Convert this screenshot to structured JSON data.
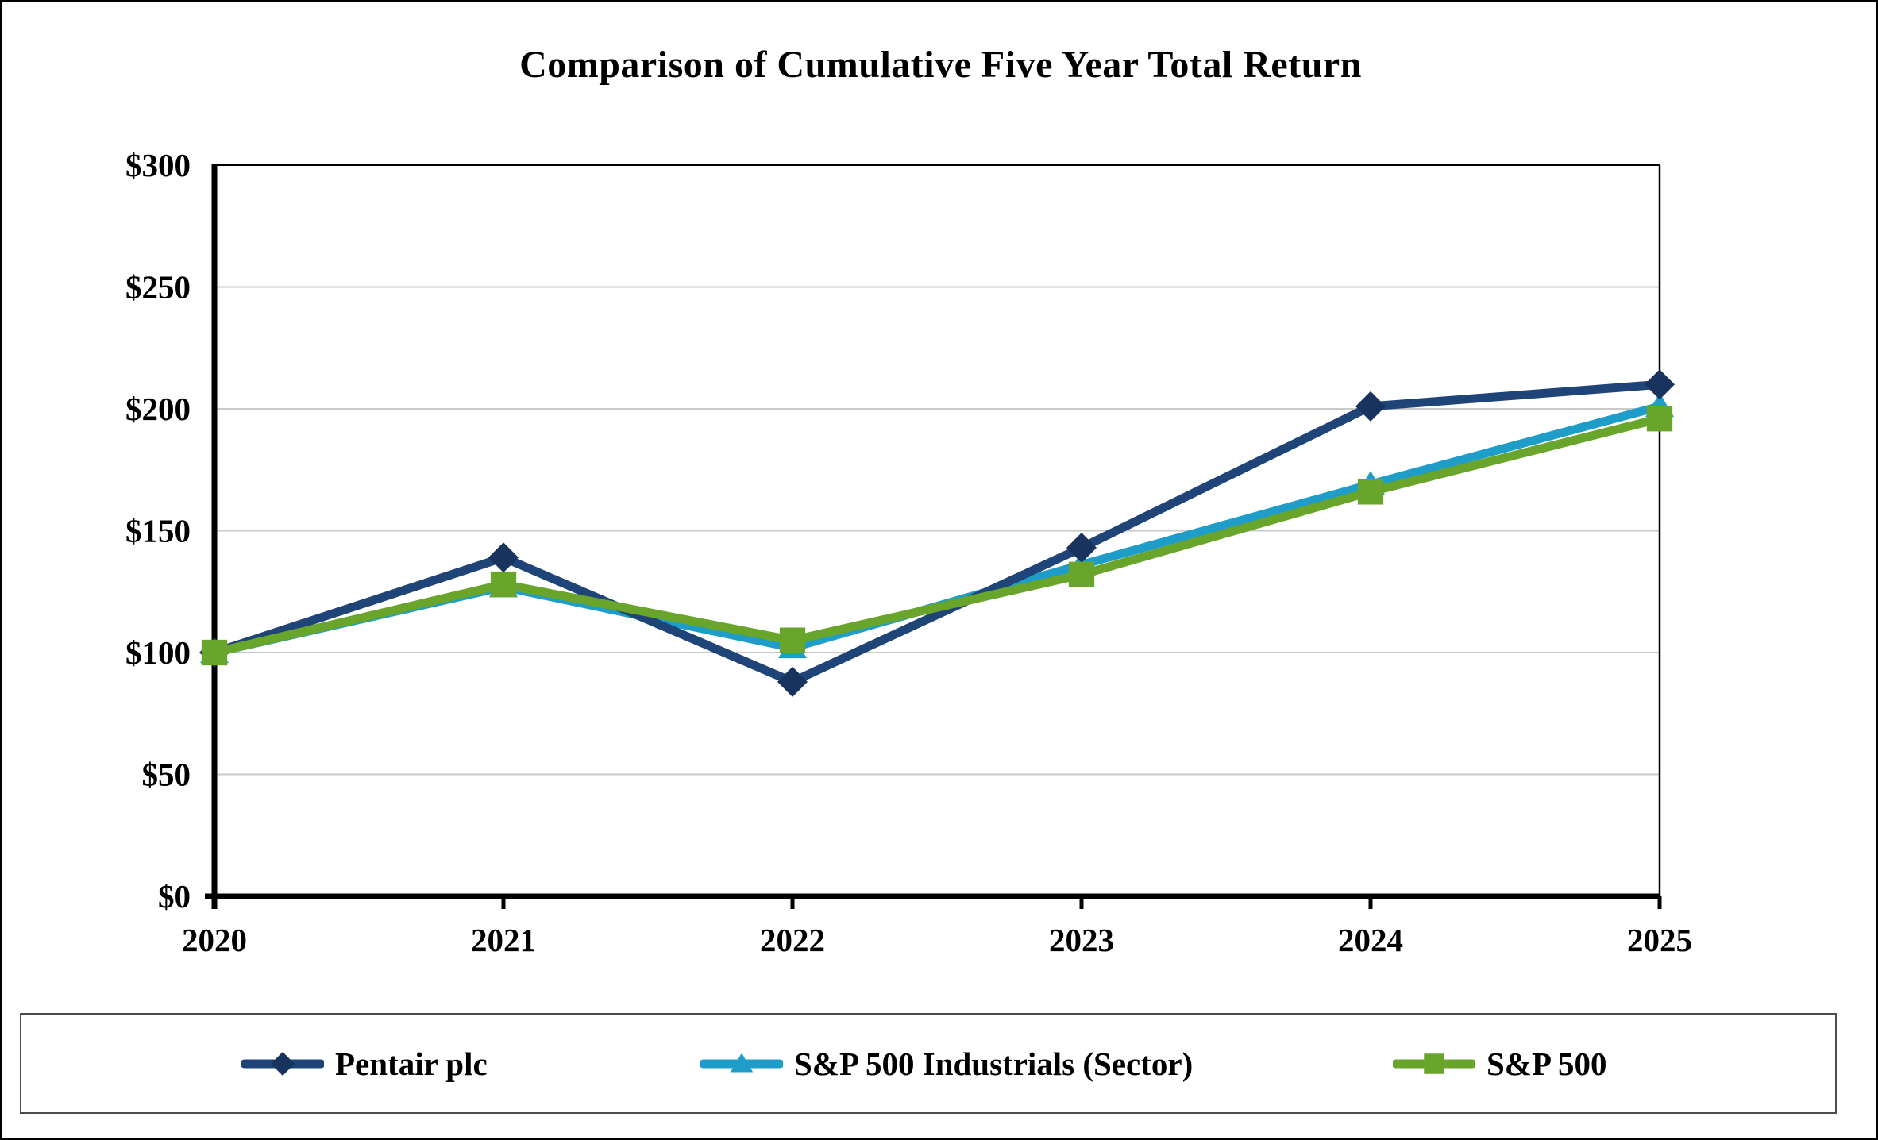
{
  "title": "Comparison of Cumulative Five Year Total Return",
  "colors": {
    "background": "#FFFFFF",
    "axis": "#000000",
    "gridline": "#C9C9C9",
    "plot_border": "#000000",
    "legend_border": "#4D4D4D",
    "pentair_line": "#1F4477",
    "pentair_marker": "#17335E",
    "industrials_line": "#1E9DC9",
    "sp500_line": "#69A52B"
  },
  "chart_data": {
    "type": "line",
    "title": "Comparison of Cumulative Five Year Total Return",
    "xlabel": "",
    "ylabel": "",
    "ylim": [
      0,
      300
    ],
    "grid": "horizontal",
    "legend_position": "bottom",
    "x_labels": [
      "2020",
      "2021",
      "2022",
      "2023",
      "2024",
      "2025"
    ],
    "y_ticks": {
      "values": [
        0,
        50,
        100,
        150,
        200,
        250,
        300
      ],
      "labels": [
        "$0",
        "$50",
        "$100",
        "$150",
        "$200",
        "$250",
        "$300"
      ]
    },
    "series": [
      {
        "name": "Pentair plc",
        "marker": "diamond",
        "line_color": "#1F4477",
        "marker_color": "#17335E",
        "values": [
          100,
          139,
          88,
          143,
          201,
          210
        ]
      },
      {
        "name": "S&P 500 Industrials (Sector)",
        "marker": "triangle",
        "line_color": "#1E9DC9",
        "marker_color": "#1E9DC9",
        "values": [
          100,
          127,
          102,
          136,
          169,
          201
        ]
      },
      {
        "name": "S&P 500",
        "marker": "square",
        "line_color": "#69A52B",
        "marker_color": "#69A52B",
        "values": [
          100,
          128,
          105,
          132,
          166,
          196
        ]
      }
    ]
  }
}
